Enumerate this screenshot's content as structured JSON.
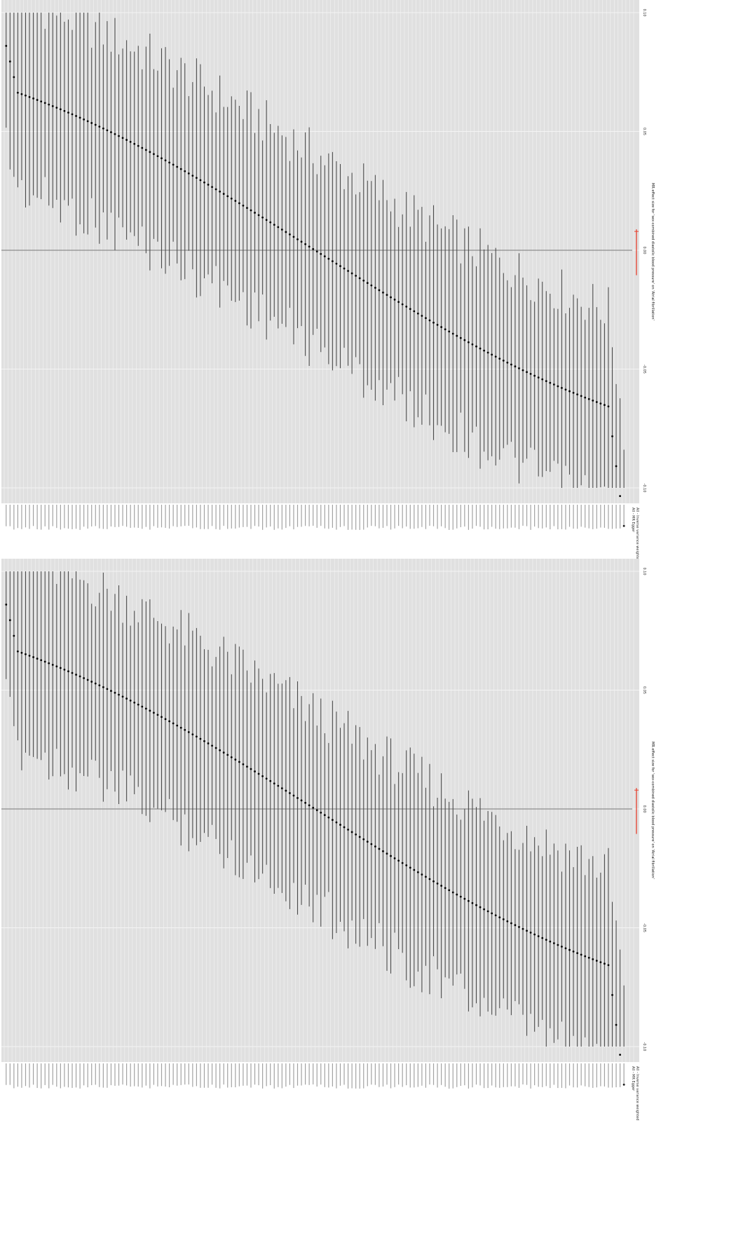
{
  "figure": {
    "panels": 2,
    "orientation": "rotated-90"
  },
  "colors": {
    "panel_bg": "#e0e0e0",
    "grid": "#f4f4f4",
    "interval": "#444444",
    "point": "#000000",
    "zero_line": "#777777",
    "highlight": "#e8412e"
  },
  "chart_data": [
    {
      "type": "forest",
      "title": "",
      "ylabel": "MR effect size for 'sex-combined diastolic blood pressure' on 'Atrial fibrillation'",
      "xlabel": "",
      "ylim": [
        -0.1,
        0.1
      ],
      "yticks": [
        -0.1,
        -0.05,
        0.0,
        0.05,
        0.1
      ],
      "ytick_labels": [
        "-0.10",
        "-0.05",
        "0.00",
        "0.05",
        "0.10"
      ],
      "legend": [
        "All - MR Egger",
        "All - Inverse variance weighted"
      ],
      "grid": true,
      "n_snps": 160,
      "highlight_interval": [
        -0.0105,
        0.0088
      ],
      "effect_start": 0.068,
      "effect_end": -0.068,
      "interval_half_width": 0.044
    },
    {
      "type": "forest",
      "title": "",
      "ylabel": "MR effect size for 'sex-combined diastolic blood pressure' on 'Atrial fibrillation'",
      "xlabel": "",
      "ylim": [
        -0.1,
        0.1
      ],
      "yticks": [
        -0.1,
        -0.05,
        0.0,
        0.05,
        0.1
      ],
      "ytick_labels": [
        "-0.10",
        "-0.05",
        "0.00",
        "0.05",
        "0.10"
      ],
      "legend": [
        "All - MR Egger",
        "All - Inverse variance weighted"
      ],
      "grid": true,
      "n_snps": 160,
      "highlight_interval": [
        -0.0105,
        0.0088
      ],
      "effect_start": 0.068,
      "effect_end": -0.068,
      "interval_half_width": 0.044
    }
  ]
}
